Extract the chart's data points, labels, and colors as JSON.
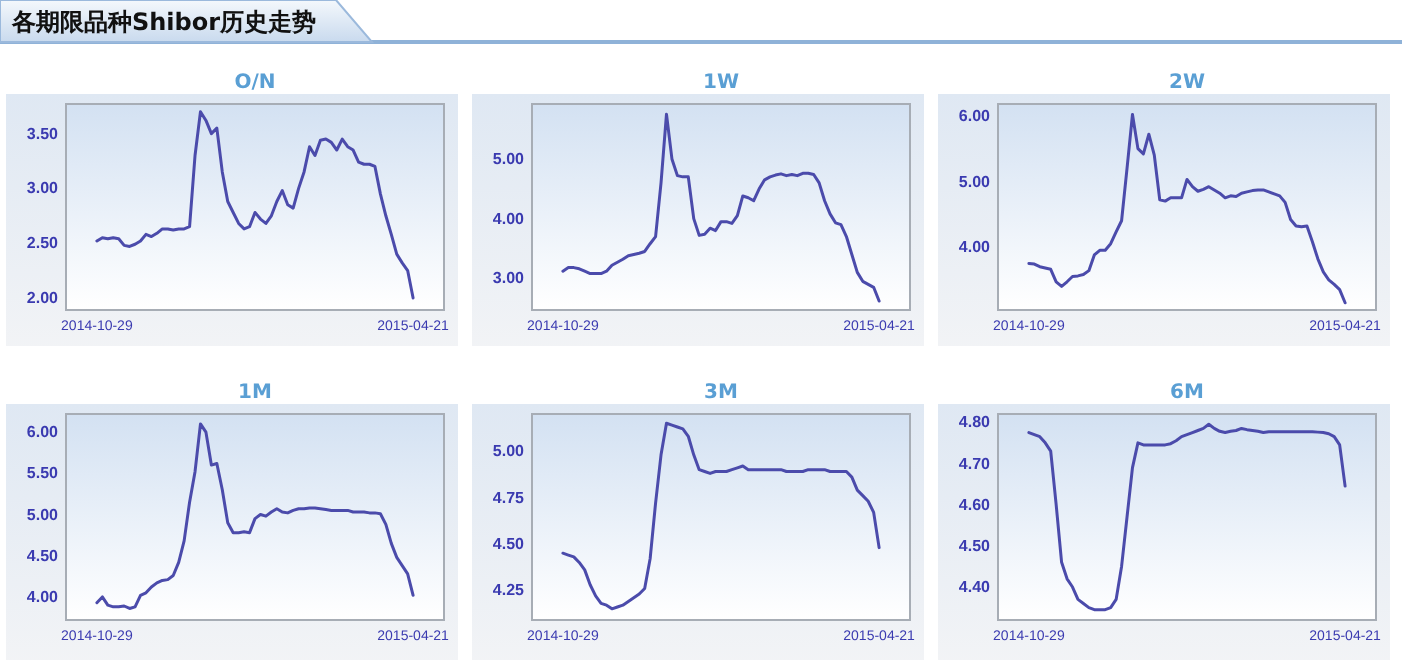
{
  "chart_data": [
    {
      "type": "other",
      "title": "各期限品种Shibor历史走势"
    },
    {
      "type": "line",
      "title": "O/N",
      "xlim": [
        "2014-10-12",
        "2015-05-08"
      ],
      "xticks": [
        "2014-10-29",
        "2015-04-21"
      ],
      "ylim": [
        1.89,
        3.77
      ],
      "yticks": [
        {
          "value": 2,
          "label": "2.00"
        },
        {
          "value": 2.5,
          "label": "2.50"
        },
        {
          "value": 3,
          "label": "3.00"
        },
        {
          "value": 3.5,
          "label": "3.50"
        }
      ],
      "x": [
        "2014-10-29",
        "2014-11-01",
        "2014-11-04",
        "2014-11-07",
        "2014-11-10",
        "2014-11-13",
        "2014-11-16",
        "2014-11-19",
        "2014-11-22",
        "2014-11-25",
        "2014-11-28",
        "2014-12-01",
        "2014-12-04",
        "2014-12-07",
        "2014-12-10",
        "2014-12-13",
        "2014-12-16",
        "2014-12-19",
        "2014-12-22",
        "2014-12-25",
        "2014-12-28",
        "2014-12-31",
        "2015-01-03",
        "2015-01-06",
        "2015-01-09",
        "2015-01-12",
        "2015-01-15",
        "2015-01-18",
        "2015-01-21",
        "2015-01-24",
        "2015-01-27",
        "2015-01-30",
        "2015-02-02",
        "2015-02-05",
        "2015-02-08",
        "2015-02-11",
        "2015-02-14",
        "2015-02-17",
        "2015-02-20",
        "2015-02-23",
        "2015-02-26",
        "2015-03-01",
        "2015-03-04",
        "2015-03-07",
        "2015-03-10",
        "2015-03-13",
        "2015-03-16",
        "2015-03-19",
        "2015-03-22",
        "2015-03-25",
        "2015-03-28",
        "2015-03-31",
        "2015-04-03",
        "2015-04-06",
        "2015-04-09",
        "2015-04-12",
        "2015-04-15",
        "2015-04-18",
        "2015-04-21"
      ],
      "series": [
        {
          "color": "#4b4bab",
          "values": [
            2.52,
            2.55,
            2.54,
            2.55,
            2.54,
            2.48,
            2.47,
            2.49,
            2.52,
            2.58,
            2.56,
            2.59,
            2.63,
            2.63,
            2.62,
            2.63,
            2.63,
            2.65,
            3.3,
            3.7,
            3.62,
            3.5,
            3.55,
            3.15,
            2.88,
            2.78,
            2.68,
            2.63,
            2.65,
            2.78,
            2.72,
            2.68,
            2.75,
            2.88,
            2.98,
            2.85,
            2.82,
            3.0,
            3.15,
            3.38,
            3.3,
            3.44,
            3.45,
            3.42,
            3.35,
            3.45,
            3.38,
            3.35,
            3.24,
            3.22,
            3.22,
            3.2,
            2.95,
            2.75,
            2.58,
            2.4,
            2.32,
            2.25,
            2.0
          ]
        }
      ]
    },
    {
      "type": "line",
      "title": "1W",
      "xlim": [
        "2014-10-12",
        "2015-05-08"
      ],
      "xticks": [
        "2014-10-29",
        "2015-04-21"
      ],
      "ylim": [
        2.47,
        5.92
      ],
      "yticks": [
        {
          "value": 3,
          "label": "3.00"
        },
        {
          "value": 4,
          "label": "4.00"
        },
        {
          "value": 5,
          "label": "5.00"
        }
      ],
      "x": [
        "2014-10-29",
        "2014-11-01",
        "2014-11-04",
        "2014-11-07",
        "2014-11-10",
        "2014-11-13",
        "2014-11-16",
        "2014-11-19",
        "2014-11-22",
        "2014-11-25",
        "2014-11-28",
        "2014-12-01",
        "2014-12-04",
        "2014-12-07",
        "2014-12-10",
        "2014-12-13",
        "2014-12-16",
        "2014-12-19",
        "2014-12-22",
        "2014-12-25",
        "2014-12-28",
        "2014-12-31",
        "2015-01-03",
        "2015-01-06",
        "2015-01-09",
        "2015-01-12",
        "2015-01-15",
        "2015-01-18",
        "2015-01-21",
        "2015-01-24",
        "2015-01-27",
        "2015-01-30",
        "2015-02-02",
        "2015-02-05",
        "2015-02-08",
        "2015-02-11",
        "2015-02-14",
        "2015-02-17",
        "2015-02-20",
        "2015-02-23",
        "2015-02-26",
        "2015-03-01",
        "2015-03-04",
        "2015-03-07",
        "2015-03-10",
        "2015-03-13",
        "2015-03-16",
        "2015-03-19",
        "2015-03-22",
        "2015-03-25",
        "2015-03-28",
        "2015-03-31",
        "2015-04-03",
        "2015-04-06",
        "2015-04-09",
        "2015-04-12",
        "2015-04-15",
        "2015-04-18",
        "2015-04-21"
      ],
      "series": [
        {
          "color": "#4b4bab",
          "values": [
            3.12,
            3.18,
            3.18,
            3.16,
            3.12,
            3.08,
            3.08,
            3.08,
            3.12,
            3.22,
            3.27,
            3.32,
            3.38,
            3.4,
            3.42,
            3.45,
            3.58,
            3.7,
            4.6,
            5.75,
            5.0,
            4.72,
            4.7,
            4.7,
            4.0,
            3.72,
            3.74,
            3.84,
            3.8,
            3.95,
            3.95,
            3.92,
            4.05,
            4.38,
            4.35,
            4.3,
            4.5,
            4.65,
            4.7,
            4.73,
            4.75,
            4.72,
            4.74,
            4.72,
            4.76,
            4.76,
            4.74,
            4.6,
            4.3,
            4.08,
            3.93,
            3.9,
            3.7,
            3.4,
            3.1,
            2.95,
            2.9,
            2.85,
            2.62
          ]
        }
      ]
    },
    {
      "type": "line",
      "title": "2W",
      "xlim": [
        "2014-10-12",
        "2015-05-08"
      ],
      "xticks": [
        "2014-10-29",
        "2015-04-21"
      ],
      "ylim": [
        3.04,
        6.18
      ],
      "yticks": [
        {
          "value": 4,
          "label": "4.00"
        },
        {
          "value": 5,
          "label": "5.00"
        },
        {
          "value": 6,
          "label": "6.00"
        }
      ],
      "x": [
        "2014-10-29",
        "2014-11-01",
        "2014-11-04",
        "2014-11-07",
        "2014-11-10",
        "2014-11-13",
        "2014-11-16",
        "2014-11-19",
        "2014-11-22",
        "2014-11-25",
        "2014-11-28",
        "2014-12-01",
        "2014-12-04",
        "2014-12-07",
        "2014-12-10",
        "2014-12-13",
        "2014-12-16",
        "2014-12-19",
        "2014-12-22",
        "2014-12-25",
        "2014-12-28",
        "2014-12-31",
        "2015-01-03",
        "2015-01-06",
        "2015-01-09",
        "2015-01-12",
        "2015-01-15",
        "2015-01-18",
        "2015-01-21",
        "2015-01-24",
        "2015-01-27",
        "2015-01-30",
        "2015-02-02",
        "2015-02-05",
        "2015-02-08",
        "2015-02-11",
        "2015-02-14",
        "2015-02-17",
        "2015-02-20",
        "2015-02-23",
        "2015-02-26",
        "2015-03-01",
        "2015-03-04",
        "2015-03-07",
        "2015-03-10",
        "2015-03-13",
        "2015-03-16",
        "2015-03-19",
        "2015-03-22",
        "2015-03-25",
        "2015-03-28",
        "2015-03-31",
        "2015-04-03",
        "2015-04-06",
        "2015-04-09",
        "2015-04-12",
        "2015-04-15",
        "2015-04-18",
        "2015-04-21"
      ],
      "series": [
        {
          "color": "#4b4bab",
          "values": [
            3.75,
            3.74,
            3.7,
            3.68,
            3.66,
            3.47,
            3.4,
            3.47,
            3.55,
            3.56,
            3.58,
            3.64,
            3.88,
            3.95,
            3.95,
            4.05,
            4.23,
            4.4,
            5.2,
            6.02,
            5.5,
            5.42,
            5.72,
            5.4,
            4.72,
            4.7,
            4.75,
            4.75,
            4.75,
            5.03,
            4.92,
            4.85,
            4.88,
            4.92,
            4.87,
            4.82,
            4.75,
            4.78,
            4.77,
            4.82,
            4.84,
            4.86,
            4.87,
            4.87,
            4.84,
            4.81,
            4.78,
            4.68,
            4.42,
            4.32,
            4.31,
            4.32,
            4.08,
            3.82,
            3.62,
            3.5,
            3.43,
            3.35,
            3.15
          ]
        }
      ]
    },
    {
      "type": "line",
      "title": "1M",
      "xlim": [
        "2014-10-12",
        "2015-05-08"
      ],
      "xticks": [
        "2014-10-29",
        "2015-04-21"
      ],
      "ylim": [
        3.72,
        6.22
      ],
      "yticks": [
        {
          "value": 4,
          "label": "4.00"
        },
        {
          "value": 4.5,
          "label": "4.50"
        },
        {
          "value": 5,
          "label": "5.00"
        },
        {
          "value": 5.5,
          "label": "5.50"
        },
        {
          "value": 6,
          "label": "6.00"
        }
      ],
      "x": [
        "2014-10-29",
        "2014-11-01",
        "2014-11-04",
        "2014-11-07",
        "2014-11-10",
        "2014-11-13",
        "2014-11-16",
        "2014-11-19",
        "2014-11-22",
        "2014-11-25",
        "2014-11-28",
        "2014-12-01",
        "2014-12-04",
        "2014-12-07",
        "2014-12-10",
        "2014-12-13",
        "2014-12-16",
        "2014-12-19",
        "2014-12-22",
        "2014-12-25",
        "2014-12-28",
        "2014-12-31",
        "2015-01-03",
        "2015-01-06",
        "2015-01-09",
        "2015-01-12",
        "2015-01-15",
        "2015-01-18",
        "2015-01-21",
        "2015-01-24",
        "2015-01-27",
        "2015-01-30",
        "2015-02-02",
        "2015-02-05",
        "2015-02-08",
        "2015-02-11",
        "2015-02-14",
        "2015-02-17",
        "2015-02-20",
        "2015-02-23",
        "2015-02-26",
        "2015-03-01",
        "2015-03-04",
        "2015-03-07",
        "2015-03-10",
        "2015-03-13",
        "2015-03-16",
        "2015-03-19",
        "2015-03-22",
        "2015-03-25",
        "2015-03-28",
        "2015-03-31",
        "2015-04-03",
        "2015-04-06",
        "2015-04-09",
        "2015-04-12",
        "2015-04-15",
        "2015-04-18",
        "2015-04-21"
      ],
      "series": [
        {
          "color": "#4b4bab",
          "values": [
            3.93,
            4.0,
            3.9,
            3.88,
            3.88,
            3.89,
            3.86,
            3.88,
            4.02,
            4.05,
            4.12,
            4.17,
            4.2,
            4.21,
            4.26,
            4.42,
            4.68,
            5.15,
            5.52,
            6.1,
            6.0,
            5.6,
            5.62,
            5.3,
            4.9,
            4.78,
            4.78,
            4.79,
            4.78,
            4.95,
            5.0,
            4.98,
            5.03,
            5.07,
            5.03,
            5.02,
            5.05,
            5.07,
            5.07,
            5.08,
            5.08,
            5.07,
            5.06,
            5.05,
            5.05,
            5.05,
            5.05,
            5.03,
            5.03,
            5.03,
            5.02,
            5.02,
            5.01,
            4.88,
            4.65,
            4.48,
            4.38,
            4.28,
            4.02
          ]
        }
      ]
    },
    {
      "type": "line",
      "title": "3M",
      "xlim": [
        "2014-10-12",
        "2015-05-08"
      ],
      "xticks": [
        "2014-10-29",
        "2015-04-21"
      ],
      "ylim": [
        4.09,
        5.2
      ],
      "yticks": [
        {
          "value": 4.25,
          "label": "4.25"
        },
        {
          "value": 4.5,
          "label": "4.50"
        },
        {
          "value": 4.75,
          "label": "4.75"
        },
        {
          "value": 5,
          "label": "5.00"
        }
      ],
      "x": [
        "2014-10-29",
        "2014-11-01",
        "2014-11-04",
        "2014-11-07",
        "2014-11-10",
        "2014-11-13",
        "2014-11-16",
        "2014-11-19",
        "2014-11-22",
        "2014-11-25",
        "2014-11-28",
        "2014-12-01",
        "2014-12-04",
        "2014-12-07",
        "2014-12-10",
        "2014-12-13",
        "2014-12-16",
        "2014-12-19",
        "2014-12-22",
        "2014-12-25",
        "2014-12-28",
        "2014-12-31",
        "2015-01-03",
        "2015-01-06",
        "2015-01-09",
        "2015-01-12",
        "2015-01-15",
        "2015-01-18",
        "2015-01-21",
        "2015-01-24",
        "2015-01-27",
        "2015-01-30",
        "2015-02-02",
        "2015-02-05",
        "2015-02-08",
        "2015-02-11",
        "2015-02-14",
        "2015-02-17",
        "2015-02-20",
        "2015-02-23",
        "2015-02-26",
        "2015-03-01",
        "2015-03-04",
        "2015-03-07",
        "2015-03-10",
        "2015-03-13",
        "2015-03-16",
        "2015-03-19",
        "2015-03-22",
        "2015-03-25",
        "2015-03-28",
        "2015-03-31",
        "2015-04-03",
        "2015-04-06",
        "2015-04-09",
        "2015-04-12",
        "2015-04-15",
        "2015-04-18",
        "2015-04-21"
      ],
      "series": [
        {
          "color": "#4b4bab",
          "values": [
            4.45,
            4.44,
            4.43,
            4.4,
            4.36,
            4.28,
            4.22,
            4.18,
            4.17,
            4.15,
            4.16,
            4.17,
            4.19,
            4.21,
            4.23,
            4.26,
            4.42,
            4.72,
            4.98,
            5.15,
            5.14,
            5.13,
            5.12,
            5.08,
            4.98,
            4.9,
            4.89,
            4.88,
            4.89,
            4.89,
            4.89,
            4.9,
            4.91,
            4.92,
            4.9,
            4.9,
            4.9,
            4.9,
            4.9,
            4.9,
            4.9,
            4.89,
            4.89,
            4.89,
            4.89,
            4.9,
            4.9,
            4.9,
            4.9,
            4.89,
            4.89,
            4.89,
            4.89,
            4.86,
            4.79,
            4.76,
            4.73,
            4.67,
            4.48
          ]
        }
      ]
    },
    {
      "type": "line",
      "title": "6M",
      "xlim": [
        "2014-10-12",
        "2015-05-08"
      ],
      "xticks": [
        "2014-10-29",
        "2015-04-21"
      ],
      "ylim": [
        4.32,
        4.82
      ],
      "yticks": [
        {
          "value": 4.4,
          "label": "4.40"
        },
        {
          "value": 4.5,
          "label": "4.50"
        },
        {
          "value": 4.6,
          "label": "4.60"
        },
        {
          "value": 4.7,
          "label": "4.70"
        },
        {
          "value": 4.8,
          "label": "4.80"
        }
      ],
      "x": [
        "2014-10-29",
        "2014-11-01",
        "2014-11-04",
        "2014-11-07",
        "2014-11-10",
        "2014-11-13",
        "2014-11-16",
        "2014-11-19",
        "2014-11-22",
        "2014-11-25",
        "2014-11-28",
        "2014-12-01",
        "2014-12-04",
        "2014-12-07",
        "2014-12-10",
        "2014-12-13",
        "2014-12-16",
        "2014-12-19",
        "2014-12-22",
        "2014-12-25",
        "2014-12-28",
        "2014-12-31",
        "2015-01-03",
        "2015-01-06",
        "2015-01-09",
        "2015-01-12",
        "2015-01-15",
        "2015-01-18",
        "2015-01-21",
        "2015-01-24",
        "2015-01-27",
        "2015-01-30",
        "2015-02-02",
        "2015-02-05",
        "2015-02-08",
        "2015-02-11",
        "2015-02-14",
        "2015-02-17",
        "2015-02-20",
        "2015-02-23",
        "2015-02-26",
        "2015-03-01",
        "2015-03-04",
        "2015-03-07",
        "2015-03-10",
        "2015-03-13",
        "2015-03-16",
        "2015-03-19",
        "2015-03-22",
        "2015-03-25",
        "2015-03-28",
        "2015-03-31",
        "2015-04-03",
        "2015-04-06",
        "2015-04-09",
        "2015-04-12",
        "2015-04-15",
        "2015-04-18",
        "2015-04-21"
      ],
      "series": [
        {
          "color": "#4b4bab",
          "values": [
            4.775,
            4.77,
            4.765,
            4.75,
            4.73,
            4.6,
            4.46,
            4.42,
            4.4,
            4.37,
            4.36,
            4.35,
            4.345,
            4.345,
            4.345,
            4.35,
            4.37,
            4.45,
            4.57,
            4.69,
            4.75,
            4.745,
            4.745,
            4.745,
            4.745,
            4.745,
            4.748,
            4.755,
            4.765,
            4.77,
            4.775,
            4.78,
            4.785,
            4.795,
            4.785,
            4.778,
            4.775,
            4.778,
            4.78,
            4.785,
            4.782,
            4.78,
            4.778,
            4.775,
            4.777,
            4.777,
            4.777,
            4.777,
            4.777,
            4.777,
            4.777,
            4.777,
            4.777,
            4.776,
            4.775,
            4.772,
            4.765,
            4.745,
            4.645
          ]
        }
      ]
    }
  ]
}
